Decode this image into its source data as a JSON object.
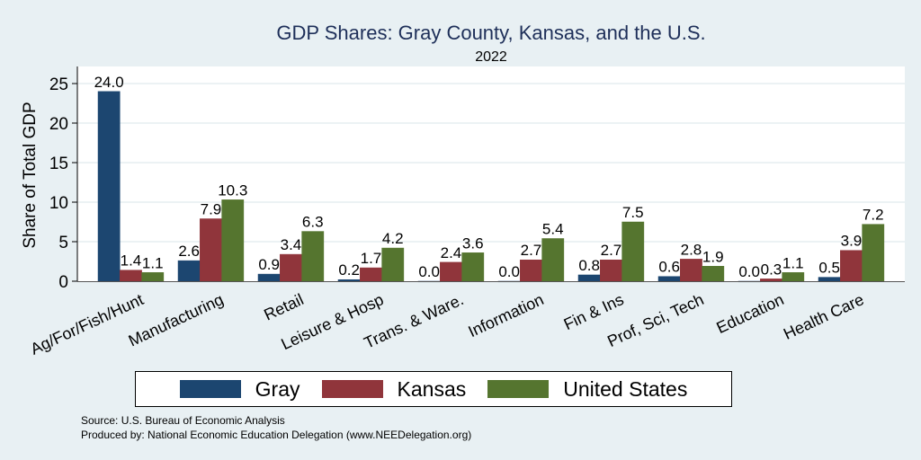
{
  "chart_data": {
    "type": "bar",
    "title": "GDP Shares: Gray County, Kansas, and the U.S.",
    "subtitle": "2022",
    "xlabel": "",
    "ylabel": "Share of Total GDP",
    "ylim": [
      0,
      27
    ],
    "yticks": [
      0,
      5,
      10,
      15,
      20,
      25
    ],
    "grid": true,
    "legend_position": "bottom",
    "categories": [
      "Ag/For/Fish/Hunt",
      "Manufacturing",
      "Retail",
      "Leisure & Hosp",
      "Trans. & Ware.",
      "Information",
      "Fin & Ins",
      "Prof, Sci, Tech",
      "Education",
      "Health Care"
    ],
    "series": [
      {
        "name": "Gray",
        "color": "#1c4670",
        "values": [
          24.0,
          2.6,
          0.9,
          0.2,
          0.0,
          0.0,
          0.8,
          0.6,
          0.0,
          0.5
        ]
      },
      {
        "name": "Kansas",
        "color": "#90353b",
        "values": [
          1.4,
          7.9,
          3.4,
          1.7,
          2.4,
          2.7,
          2.7,
          2.8,
          0.3,
          3.9
        ]
      },
      {
        "name": "United States",
        "color": "#55752f",
        "values": [
          1.1,
          10.3,
          6.3,
          4.2,
          3.6,
          5.4,
          7.5,
          1.9,
          1.1,
          7.2
        ]
      }
    ]
  },
  "notes": {
    "source": "Source: U.S. Bureau of Economic Analysis",
    "produced_by": "Produced by: National Economic Education Delegation (www.NEEDelegation.org)"
  }
}
